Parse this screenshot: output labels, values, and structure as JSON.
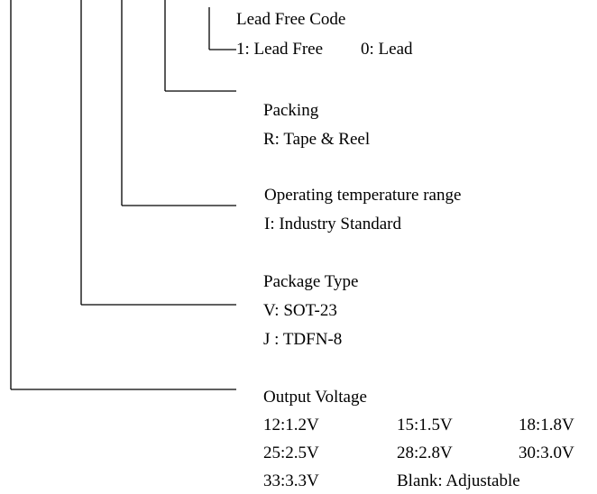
{
  "sections": [
    {
      "title": "Lead Free Code",
      "rows": [
        [
          "1: Lead Free",
          "0: Lead"
        ]
      ]
    },
    {
      "title": "Packing",
      "rows": [
        [
          "R: Tape & Reel"
        ]
      ]
    },
    {
      "title": "Operating temperature range",
      "rows": [
        [
          "I: Industry Standard"
        ]
      ]
    },
    {
      "title": "Package Type",
      "rows": [
        [
          "V: SOT-23"
        ],
        [
          "J : TDFN-8"
        ]
      ]
    },
    {
      "title": "Output Voltage",
      "rows": [
        [
          "12:1.2V",
          "15:1.5V",
          "18:1.8V"
        ],
        [
          "25:2.5V",
          "28:2.8V",
          "30:3.0V"
        ],
        [
          "33:3.3V",
          "Blank: Adjustable"
        ]
      ]
    }
  ]
}
